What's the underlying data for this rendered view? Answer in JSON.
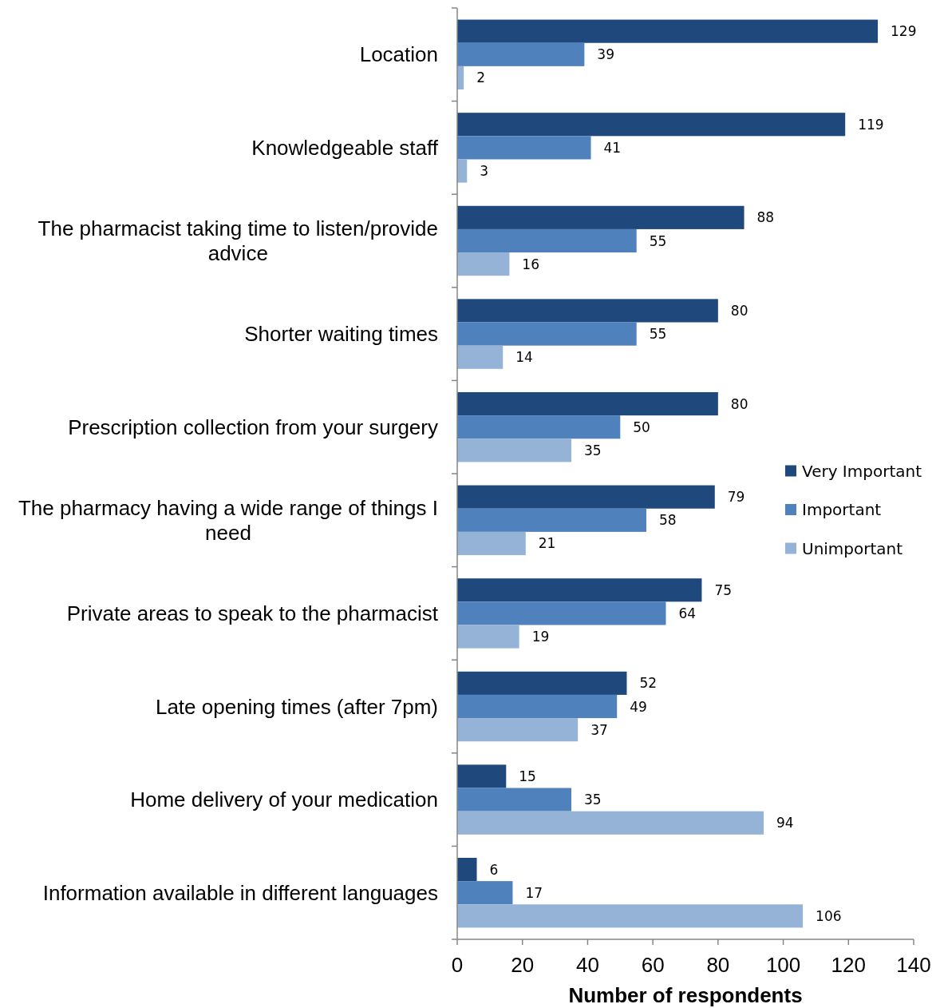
{
  "chart_data": {
    "type": "bar",
    "orientation": "horizontal",
    "xlabel": "Number of respondents",
    "categories": [
      "Location",
      "Knowledgeable staff",
      "The pharmacist taking time to listen/provide advice",
      "Shorter waiting times",
      "Prescription collection from your surgery",
      "The pharmacy having a wide range of things I need",
      "Private areas to speak to the pharmacist",
      "Late opening times (after 7pm)",
      "Home delivery of your medication",
      "Information available in different languages"
    ],
    "series": [
      {
        "name": "Very Important",
        "color": "#1f497d",
        "values": [
          129,
          119,
          88,
          80,
          80,
          79,
          75,
          52,
          15,
          6
        ]
      },
      {
        "name": "Important",
        "color": "#4f81bd",
        "values": [
          39,
          41,
          55,
          55,
          50,
          58,
          64,
          49,
          35,
          17
        ]
      },
      {
        "name": "Unimportant",
        "color": "#95b3d7",
        "values": [
          2,
          3,
          16,
          14,
          35,
          21,
          19,
          37,
          94,
          106
        ]
      }
    ],
    "xlim": [
      0,
      140
    ],
    "xticks": [
      0,
      20,
      40,
      60,
      80,
      100,
      120,
      140
    ],
    "data_labels": true,
    "legend": "right"
  }
}
